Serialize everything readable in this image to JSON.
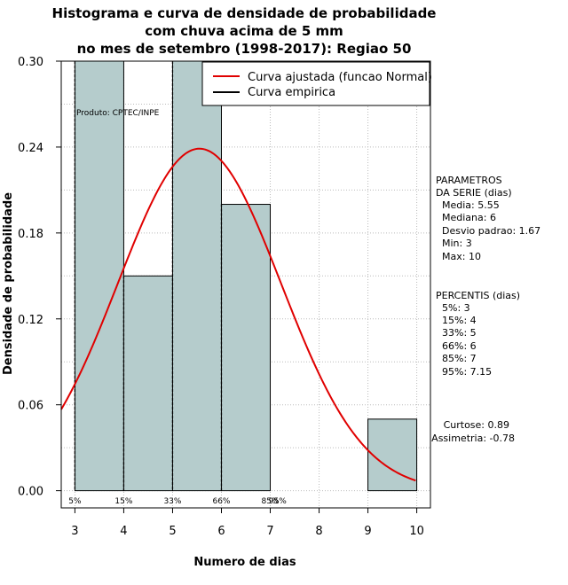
{
  "chart_data": {
    "type": "bar",
    "title": [
      "Histograma e curva de densidade de probabilidade",
      "com chuva acima de 5 mm",
      "no mes de setembro (1998-2017): Regiao 50"
    ],
    "xlabel": "Numero de dias",
    "ylabel": "Densidade de probabilidade",
    "xlim": [
      2.72,
      10.28
    ],
    "ylim": [
      -0.012,
      0.3
    ],
    "x_ticks": [
      3,
      4,
      5,
      6,
      7,
      8,
      9,
      10
    ],
    "y_ticks": [
      0.0,
      0.06,
      0.12,
      0.18,
      0.24,
      0.3
    ],
    "y_tick_labels": [
      "0.00",
      "0.06",
      "0.12",
      "0.18",
      "0.24",
      "0.30"
    ],
    "grid": true,
    "bins": [
      {
        "from": 3,
        "to": 4,
        "density": 0.3
      },
      {
        "from": 4,
        "to": 5,
        "density": 0.15
      },
      {
        "from": 5,
        "to": 6,
        "density": 0.3
      },
      {
        "from": 6,
        "to": 7,
        "density": 0.2
      },
      {
        "from": 7,
        "to": 8,
        "density": 0.0
      },
      {
        "from": 8,
        "to": 9,
        "density": 0.0
      },
      {
        "from": 9,
        "to": 10,
        "density": 0.05
      }
    ],
    "normal_fit": {
      "mean": 5.55,
      "sd": 1.67,
      "color": "#e00000"
    },
    "percentile_lines": [
      {
        "label": "5%",
        "x": 3
      },
      {
        "label": "15%",
        "x": 4
      },
      {
        "label": "33%",
        "x": 5
      },
      {
        "label": "66%",
        "x": 6
      },
      {
        "label": "85%",
        "x": 7
      },
      {
        "label": "95%",
        "x": 7.15
      }
    ],
    "bar_color": "#b5cccc",
    "legend": [
      {
        "label": "Curva ajustada (funcao Normal)",
        "color": "#e00000"
      },
      {
        "label": "Curva empirica",
        "color": "#000000"
      }
    ],
    "credit": "Produto: CPTEC/INPE"
  },
  "stats": {
    "header1": "PARAMETROS",
    "header2": "DA SERIE (dias)",
    "lines": [
      "Media: 5.55",
      "Mediana: 6",
      "Desvio padrao: 1.67",
      "Min: 3",
      "Max: 10"
    ]
  },
  "percentis": {
    "header": "PERCENTIS (dias)",
    "lines": [
      "5%: 3",
      "15%: 4",
      "33%: 5",
      "66%: 6",
      "85%: 7",
      "95%: 7.15"
    ]
  },
  "shape": {
    "curtose": "Curtose: 0.89",
    "assimetria": "Assimetria: -0.78"
  }
}
